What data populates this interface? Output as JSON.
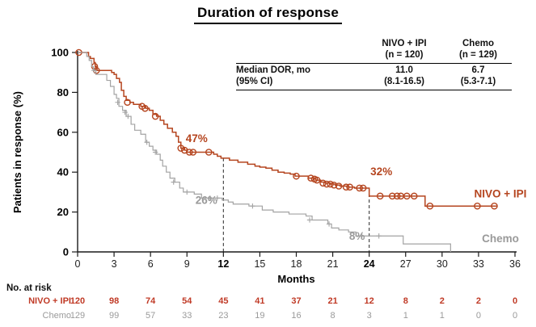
{
  "title": "Duration of response",
  "colors": {
    "nivo": "#b5451f",
    "nivo_risk": "#c03a26",
    "chemo": "#a3a3a3",
    "chemo_text": "#9a9a9a",
    "axis": "#1a1a1a",
    "dashed": "#3a3a3a",
    "tick_text": "#222222",
    "bold_tick_text": "#000000"
  },
  "chart_data": {
    "type": "line",
    "subtype": "kaplan-meier-step",
    "title": "Duration of response",
    "xlabel": "Months",
    "ylabel": "Patients in response (%)",
    "xlim": [
      0,
      36
    ],
    "ylim": [
      0,
      100
    ],
    "xticks": [
      0,
      3,
      6,
      9,
      12,
      15,
      18,
      21,
      24,
      27,
      30,
      33,
      36
    ],
    "bold_xticks": [
      12,
      24
    ],
    "yticks": [
      0,
      20,
      40,
      60,
      80,
      100
    ],
    "grid": false,
    "series": [
      {
        "name": "NIVO + IPI",
        "color_key": "nivo",
        "marker": "circle",
        "steps": [
          [
            0,
            100
          ],
          [
            0.9,
            98
          ],
          [
            1.05,
            97
          ],
          [
            1.35,
            95
          ],
          [
            1.45,
            93
          ],
          [
            1.6,
            91
          ],
          [
            2.6,
            91
          ],
          [
            2.8,
            90
          ],
          [
            3.0,
            89
          ],
          [
            3.2,
            87
          ],
          [
            3.45,
            85
          ],
          [
            3.6,
            81
          ],
          [
            3.8,
            78
          ],
          [
            4.0,
            76
          ],
          [
            4.3,
            75
          ],
          [
            4.6,
            74
          ],
          [
            5.2,
            73
          ],
          [
            5.6,
            72
          ],
          [
            5.9,
            71
          ],
          [
            6.2,
            69
          ],
          [
            6.5,
            68
          ],
          [
            6.8,
            66
          ],
          [
            7.1,
            64
          ],
          [
            7.4,
            62
          ],
          [
            7.8,
            60
          ],
          [
            8.1,
            58
          ],
          [
            8.3,
            55
          ],
          [
            8.5,
            52
          ],
          [
            8.8,
            51
          ],
          [
            9.0,
            50
          ],
          [
            11.0,
            50
          ],
          [
            11.2,
            49
          ],
          [
            11.5,
            48
          ],
          [
            11.8,
            47
          ],
          [
            12.5,
            46
          ],
          [
            13.2,
            45
          ],
          [
            14.0,
            44
          ],
          [
            14.6,
            43
          ],
          [
            15.0,
            42.5
          ],
          [
            15.5,
            42
          ],
          [
            16.0,
            41
          ],
          [
            16.5,
            40
          ],
          [
            17.0,
            39.5
          ],
          [
            17.5,
            39
          ],
          [
            17.9,
            38
          ],
          [
            19.0,
            37
          ],
          [
            19.6,
            36
          ],
          [
            20.0,
            35
          ],
          [
            20.4,
            34.5
          ],
          [
            20.8,
            34
          ],
          [
            21.2,
            33.5
          ],
          [
            21.6,
            33
          ],
          [
            22.2,
            32.5
          ],
          [
            22.8,
            32
          ],
          [
            24.0,
            28
          ],
          [
            28.6,
            23
          ],
          [
            34.5,
            23
          ]
        ],
        "censors": [
          [
            0.1,
            100
          ],
          [
            1.4,
            93
          ],
          [
            1.55,
            91
          ],
          [
            4.1,
            75
          ],
          [
            5.3,
            73
          ],
          [
            5.55,
            72
          ],
          [
            6.4,
            68
          ],
          [
            8.5,
            52
          ],
          [
            8.8,
            51
          ],
          [
            9.2,
            50
          ],
          [
            9.5,
            50
          ],
          [
            10.8,
            50
          ],
          [
            18.0,
            38
          ],
          [
            19.2,
            37
          ],
          [
            19.5,
            36.5
          ],
          [
            19.7,
            36
          ],
          [
            20.2,
            34.5
          ],
          [
            20.5,
            34
          ],
          [
            20.8,
            34
          ],
          [
            21.1,
            33.5
          ],
          [
            21.5,
            33
          ],
          [
            22.1,
            32.5
          ],
          [
            22.4,
            32.5
          ],
          [
            23.2,
            32
          ],
          [
            23.5,
            32
          ],
          [
            24.9,
            28
          ],
          [
            25.9,
            28
          ],
          [
            26.3,
            28
          ],
          [
            26.6,
            28
          ],
          [
            27.1,
            28
          ],
          [
            27.7,
            28
          ],
          [
            29.0,
            23
          ],
          [
            32.9,
            23
          ],
          [
            34.3,
            23
          ]
        ]
      },
      {
        "name": "Chemo",
        "color_key": "chemo",
        "marker": "plus",
        "steps": [
          [
            0,
            100
          ],
          [
            0.75,
            98
          ],
          [
            0.95,
            96
          ],
          [
            1.15,
            93
          ],
          [
            1.3,
            91
          ],
          [
            1.5,
            89
          ],
          [
            2.4,
            86
          ],
          [
            2.7,
            83
          ],
          [
            3.0,
            79
          ],
          [
            3.2,
            77
          ],
          [
            3.4,
            73
          ],
          [
            3.7,
            71
          ],
          [
            4.0,
            68
          ],
          [
            4.4,
            64
          ],
          [
            4.7,
            61
          ],
          [
            5.2,
            59
          ],
          [
            5.6,
            55
          ],
          [
            5.9,
            53
          ],
          [
            6.2,
            51
          ],
          [
            6.5,
            49
          ],
          [
            6.8,
            46
          ],
          [
            7.0,
            43
          ],
          [
            7.3,
            40
          ],
          [
            7.6,
            37
          ],
          [
            8.0,
            35
          ],
          [
            8.4,
            32
          ],
          [
            8.7,
            30
          ],
          [
            9.6,
            29
          ],
          [
            10.2,
            27
          ],
          [
            11.9,
            26
          ],
          [
            12.4,
            25
          ],
          [
            12.8,
            24
          ],
          [
            14.1,
            23
          ],
          [
            15.2,
            21
          ],
          [
            16.1,
            20
          ],
          [
            17.4,
            19
          ],
          [
            18.8,
            18
          ],
          [
            19.3,
            16
          ],
          [
            20.6,
            14
          ],
          [
            20.9,
            12
          ],
          [
            21.5,
            11
          ],
          [
            22.3,
            10
          ],
          [
            22.9,
            8
          ],
          [
            26.8,
            4
          ],
          [
            30.7,
            0
          ]
        ],
        "censors": [
          [
            1.35,
            91
          ],
          [
            3.3,
            75
          ],
          [
            3.9,
            70
          ],
          [
            4.15,
            68
          ],
          [
            5.7,
            55
          ],
          [
            6.4,
            50
          ],
          [
            7.9,
            35
          ],
          [
            9.0,
            30
          ],
          [
            10.9,
            27
          ],
          [
            11.5,
            27
          ],
          [
            14.4,
            23
          ],
          [
            19.1,
            16
          ],
          [
            20.7,
            14
          ],
          [
            23.4,
            8
          ],
          [
            24.8,
            8
          ]
        ]
      }
    ],
    "dashed_lines": [
      {
        "month": 12,
        "top_pct": 47
      },
      {
        "month": 24,
        "top_pct": 32
      }
    ],
    "annotations": [
      {
        "text": "47%",
        "month": 9.8,
        "pct": 55,
        "color_key": "nivo"
      },
      {
        "text": "32%",
        "month": 25.0,
        "pct": 38.5,
        "color_key": "nivo"
      },
      {
        "text": "26%",
        "month": 10.6,
        "pct": 24,
        "color_key": "chemo_text"
      },
      {
        "text": "8%",
        "month": 23.0,
        "pct": 6,
        "color_key": "chemo_text"
      }
    ],
    "series_labels": [
      {
        "text": "NIVO + IPI",
        "month": 34.8,
        "pct": 29,
        "color_key": "nivo"
      },
      {
        "text": "Chemo",
        "month": 34.8,
        "pct": 6.5,
        "color_key": "chemo_text"
      }
    ],
    "legend_position": "right-of-curves"
  },
  "inset_table": {
    "col_headers": [
      {
        "line1": "NIVO + IPI",
        "line2": "(n = 120)"
      },
      {
        "line1": "Chemo",
        "line2": "(n = 129)"
      }
    ],
    "row_label": {
      "line1": "Median DOR, mo",
      "line2": "(95% CI)"
    },
    "values": [
      {
        "line1": "11.0",
        "line2": "(8.1-16.5)"
      },
      {
        "line1": "6.7",
        "line2": "(5.3-7.1)"
      }
    ]
  },
  "risk_table": {
    "label": "No. at risk",
    "rows": [
      {
        "name": "NIVO + IPI",
        "color_key": "nivo_risk",
        "bold": true,
        "values": [
          "120",
          "98",
          "74",
          "54",
          "45",
          "41",
          "37",
          "21",
          "12",
          "8",
          "2",
          "2",
          "0"
        ]
      },
      {
        "name": "Chemo",
        "color_key": "chemo_text",
        "bold": false,
        "values": [
          "129",
          "99",
          "57",
          "33",
          "23",
          "19",
          "16",
          "8",
          "3",
          "1",
          "1",
          "0",
          "0"
        ]
      }
    ]
  }
}
